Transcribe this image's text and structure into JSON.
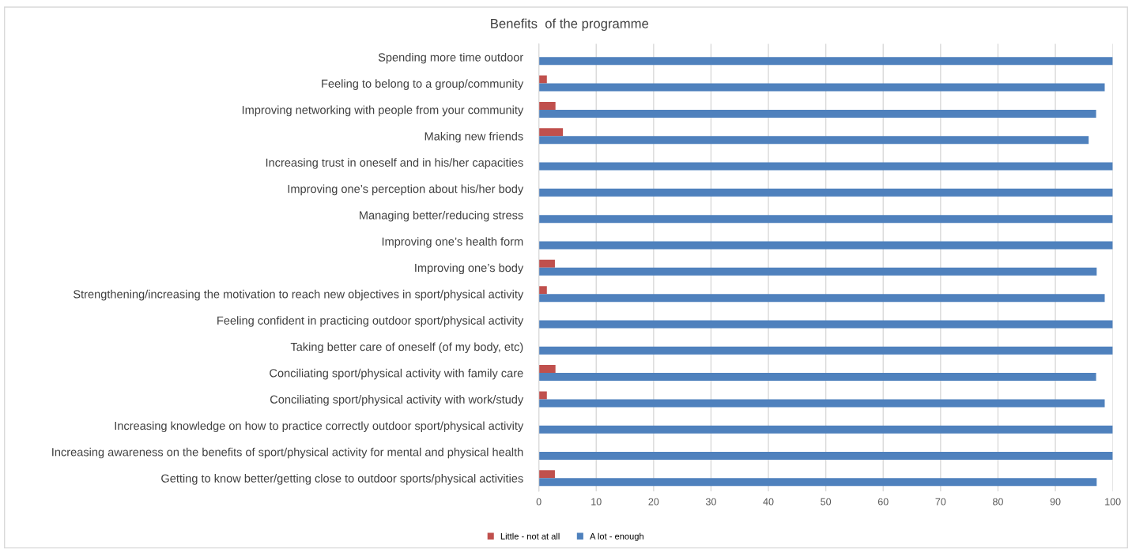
{
  "chart_data": {
    "type": "bar",
    "orientation": "horizontal",
    "title": "Benefits  of the programme",
    "categories": [
      "Spending more time outdoor",
      "Feeling to belong to a group/community",
      "Improving networking with people from your community",
      "Making new friends",
      "Increasing trust in oneself and in his/her capacities",
      "Improving one’s perception about his/her body",
      "Managing better/reducing stress",
      "Improving one’s health form",
      "Improving one’s body",
      "Strengthening/increasing the motivation to reach new objectives in sport/physical activity",
      "Feeling confident in practicing outdoor sport/physical activity",
      "Taking better care of oneself (of my body, etc)",
      "Conciliating sport/physical activity with family care",
      "Conciliating sport/physical activity with work/study",
      "Increasing knowledge on how to practice correctly outdoor sport/physical activity",
      "Increasing awareness on the benefits of sport/physical activity for mental and physical health",
      "Getting to know better/getting close to outdoor sports/physical activities"
    ],
    "series": [
      {
        "name": "Little - not at all",
        "color": "#c0504d",
        "values": [
          0,
          1.4,
          2.9,
          4.2,
          0,
          0,
          0,
          0,
          2.8,
          1.4,
          0,
          0,
          2.9,
          1.4,
          0,
          0,
          2.8
        ]
      },
      {
        "name": "A lot - enough",
        "color": "#4f81bd",
        "values": [
          100,
          98.6,
          97.1,
          95.8,
          100,
          100,
          100,
          100,
          97.2,
          98.6,
          100,
          100,
          97.1,
          98.6,
          100,
          100,
          97.2
        ]
      }
    ],
    "xlim": [
      0,
      100
    ],
    "xticks": [
      0,
      10,
      20,
      30,
      40,
      50,
      60,
      70,
      80,
      90,
      100
    ],
    "grid": "x",
    "legend": "bottom"
  }
}
